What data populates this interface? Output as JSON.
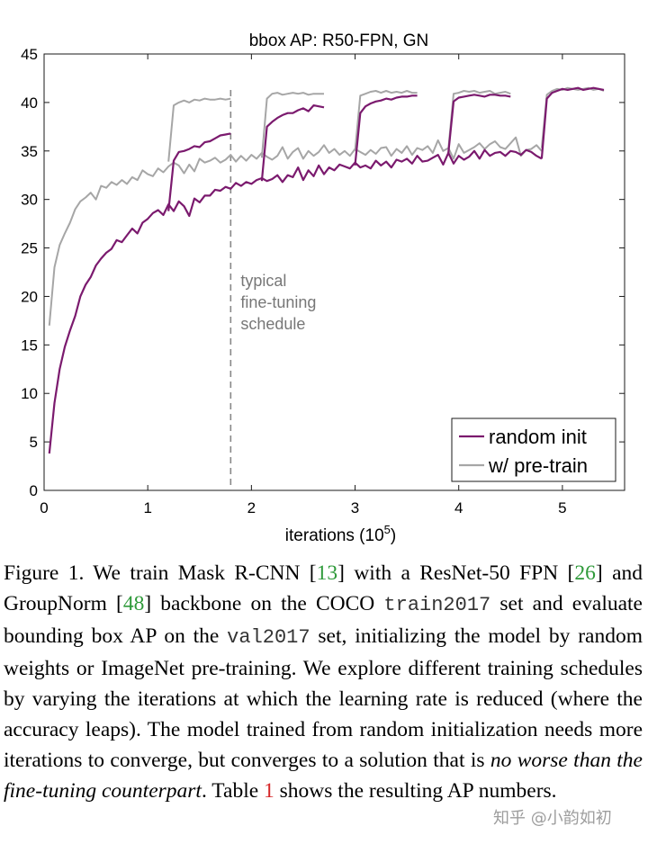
{
  "chart_data": {
    "type": "line",
    "title": "bbox AP: R50-FPN, GN",
    "xlabel": "iterations (10",
    "xlabel_sup": "5",
    "xlabel_close": ")",
    "ylabel": "",
    "xlim": [
      0,
      5.6
    ],
    "ylim": [
      0,
      45
    ],
    "xticks": [
      0,
      1,
      2,
      3,
      4,
      5
    ],
    "yticks": [
      0,
      5,
      10,
      15,
      20,
      25,
      30,
      35,
      40,
      45
    ],
    "grid": false,
    "legend_position": "bottom-right",
    "colors": {
      "random_init": "#7b1a6e",
      "pretrain": "#a6a6a6",
      "annotation": "#777777"
    },
    "annotation": {
      "x": 1.8,
      "lines": [
        "typical",
        "fine-tuning",
        "schedule"
      ]
    },
    "series": [
      {
        "name": "random init",
        "segments": [
          {
            "x": [
              0.05,
              0.1,
              0.15,
              0.2,
              0.25,
              0.3,
              0.35,
              0.4,
              0.45,
              0.5,
              0.55,
              0.6,
              0.65,
              0.7,
              0.75,
              0.8,
              0.85,
              0.9,
              0.95,
              1.0,
              1.05,
              1.1,
              1.15,
              1.2,
              1.25,
              1.3,
              1.35,
              1.4,
              1.45,
              1.5,
              1.55,
              1.6,
              1.65,
              1.7,
              1.75,
              1.8,
              1.85,
              1.9,
              1.95,
              2.0,
              2.05,
              2.1,
              2.15,
              2.2,
              2.25,
              2.3,
              2.35,
              2.4,
              2.45,
              2.5,
              2.55,
              2.6,
              2.65,
              2.7,
              2.75,
              2.8,
              2.85,
              2.9,
              2.95,
              3.0,
              3.05,
              3.1,
              3.15,
              3.2,
              3.25,
              3.3,
              3.35,
              3.4,
              3.45,
              3.5,
              3.55,
              3.6,
              3.65,
              3.7,
              3.75,
              3.8,
              3.85,
              3.9,
              3.95,
              4.0,
              4.05,
              4.1,
              4.15,
              4.2,
              4.25,
              4.3,
              4.35,
              4.4,
              4.45,
              4.5,
              4.55,
              4.6,
              4.65,
              4.7,
              4.75,
              4.8
            ],
            "y": [
              3.8,
              9.0,
              12.5,
              14.8,
              16.5,
              18.0,
              20.0,
              21.2,
              22.0,
              23.2,
              23.9,
              24.5,
              24.9,
              25.8,
              25.6,
              26.3,
              27.0,
              26.5,
              27.6,
              28.0,
              28.6,
              28.9,
              28.4,
              29.5,
              28.8,
              29.8,
              29.3,
              28.3,
              30.1,
              29.7,
              30.4,
              30.4,
              31.0,
              30.9,
              31.3,
              31.1,
              31.7,
              31.4,
              31.8,
              31.6,
              32.0,
              32.2,
              31.9,
              32.1,
              32.5,
              31.8,
              32.5,
              32.3,
              33.3,
              32.0,
              33.0,
              32.4,
              33.5,
              32.6,
              33.3,
              33.0,
              33.6,
              33.4,
              33.2,
              33.8,
              33.3,
              33.5,
              33.2,
              34.0,
              33.5,
              33.9,
              33.3,
              34.1,
              33.9,
              34.2,
              33.7,
              34.5,
              33.9,
              34.0,
              34.3,
              34.6,
              33.6,
              34.8,
              33.7,
              34.5,
              34.1,
              34.4,
              35.0,
              34.2,
              35.1,
              34.5,
              34.8,
              34.9,
              34.5,
              35.0,
              34.9,
              34.6,
              35.1,
              34.9,
              34.5,
              34.2
            ]
          },
          {
            "x": [
              1.2,
              1.25,
              1.3,
              1.35,
              1.4,
              1.45,
              1.5,
              1.55,
              1.6,
              1.65,
              1.7,
              1.75,
              1.8
            ],
            "y": [
              28.8,
              34.0,
              34.9,
              35.0,
              35.2,
              35.5,
              35.4,
              35.9,
              36.0,
              36.3,
              36.6,
              36.7,
              36.8
            ]
          },
          {
            "x": [
              2.1,
              2.15,
              2.2,
              2.25,
              2.3,
              2.35,
              2.4,
              2.45,
              2.5,
              2.55,
              2.6,
              2.65,
              2.7
            ],
            "y": [
              31.9,
              37.5,
              38.0,
              38.4,
              38.7,
              38.9,
              38.9,
              39.2,
              39.4,
              39.1,
              39.7,
              39.6,
              39.5
            ]
          },
          {
            "x": [
              3.0,
              3.05,
              3.1,
              3.15,
              3.2,
              3.25,
              3.3,
              3.35,
              3.4,
              3.45,
              3.5,
              3.55,
              3.6
            ],
            "y": [
              33.5,
              38.9,
              39.6,
              39.9,
              40.1,
              40.2,
              40.4,
              40.3,
              40.5,
              40.6,
              40.6,
              40.7,
              40.7
            ]
          },
          {
            "x": [
              3.9,
              3.95,
              4.0,
              4.05,
              4.1,
              4.15,
              4.2,
              4.25,
              4.3,
              4.35,
              4.4,
              4.45,
              4.5
            ],
            "y": [
              34.8,
              40.1,
              40.5,
              40.6,
              40.7,
              40.8,
              40.7,
              40.6,
              40.8,
              40.8,
              40.7,
              40.7,
              40.6
            ]
          },
          {
            "x": [
              4.8,
              4.85,
              4.9,
              4.95,
              5.0,
              5.05,
              5.1,
              5.15,
              5.2,
              5.25,
              5.3,
              5.35,
              5.4
            ],
            "y": [
              34.2,
              40.4,
              41.0,
              41.2,
              41.4,
              41.3,
              41.4,
              41.5,
              41.3,
              41.4,
              41.5,
              41.4,
              41.3
            ]
          }
        ]
      },
      {
        "name": "w/ pre-train",
        "segments": [
          {
            "x": [
              0.05,
              0.1,
              0.15,
              0.2,
              0.25,
              0.3,
              0.35,
              0.4,
              0.45,
              0.5,
              0.55,
              0.6,
              0.65,
              0.7,
              0.75,
              0.8,
              0.85,
              0.9,
              0.95,
              1.0,
              1.05,
              1.1,
              1.15,
              1.2,
              1.25,
              1.3,
              1.35,
              1.4,
              1.45,
              1.5,
              1.55,
              1.6,
              1.65,
              1.7,
              1.75,
              1.8,
              1.85,
              1.9,
              1.95,
              2.0,
              2.05,
              2.1,
              2.15,
              2.2,
              2.25,
              2.3,
              2.35,
              2.4,
              2.45,
              2.5,
              2.55,
              2.6,
              2.65,
              2.7,
              2.75,
              2.8,
              2.85,
              2.9,
              2.95,
              3.0,
              3.05,
              3.1,
              3.15,
              3.2,
              3.25,
              3.3,
              3.35,
              3.4,
              3.45,
              3.5,
              3.55,
              3.6,
              3.65,
              3.7,
              3.75,
              3.8,
              3.85,
              3.9,
              3.95,
              4.0,
              4.05,
              4.1,
              4.15,
              4.2,
              4.25,
              4.3,
              4.35,
              4.4,
              4.45,
              4.5,
              4.55,
              4.6,
              4.65,
              4.7,
              4.75,
              4.8
            ],
            "y": [
              17.0,
              23.0,
              25.3,
              26.5,
              27.6,
              29.0,
              29.8,
              30.2,
              30.7,
              30.0,
              31.4,
              31.2,
              31.8,
              31.5,
              32.0,
              31.6,
              32.3,
              32.0,
              33.0,
              32.6,
              32.4,
              33.2,
              32.8,
              33.4,
              33.8,
              33.5,
              32.7,
              33.6,
              32.9,
              34.2,
              33.8,
              34.0,
              34.3,
              33.8,
              34.1,
              34.6,
              33.9,
              34.5,
              34.0,
              34.6,
              34.2,
              34.8,
              34.4,
              34.1,
              34.5,
              35.4,
              34.2,
              34.9,
              35.3,
              34.2,
              35.0,
              34.5,
              34.9,
              35.6,
              34.8,
              35.2,
              34.6,
              35.0,
              34.5,
              35.2,
              34.9,
              34.6,
              35.1,
              34.7,
              35.3,
              35.4,
              34.5,
              35.2,
              34.8,
              35.5,
              34.6,
              35.3,
              35.1,
              35.5,
              34.8,
              36.1,
              35.0,
              35.3,
              34.2,
              35.7,
              34.8,
              35.1,
              35.4,
              35.8,
              35.2,
              35.7,
              36.0,
              35.4,
              35.2,
              35.8,
              36.4,
              34.5,
              35.1,
              35.2,
              35.6,
              35.0
            ]
          },
          {
            "x": [
              1.2,
              1.25,
              1.3,
              1.35,
              1.4,
              1.45,
              1.5,
              1.55,
              1.6,
              1.65,
              1.7,
              1.75,
              1.8
            ],
            "y": [
              33.9,
              39.7,
              40.0,
              40.2,
              40.0,
              40.3,
              40.2,
              40.4,
              40.3,
              40.3,
              40.4,
              40.3,
              40.4
            ]
          },
          {
            "x": [
              2.1,
              2.15,
              2.2,
              2.25,
              2.3,
              2.35,
              2.4,
              2.45,
              2.5,
              2.55,
              2.6,
              2.65,
              2.7
            ],
            "y": [
              34.3,
              40.4,
              40.9,
              41.0,
              40.8,
              40.9,
              41.0,
              40.9,
              41.0,
              40.8,
              40.9,
              40.9,
              40.9
            ]
          },
          {
            "x": [
              3.0,
              3.05,
              3.1,
              3.15,
              3.2,
              3.25,
              3.3,
              3.35,
              3.4,
              3.45,
              3.5,
              3.55,
              3.6
            ],
            "y": [
              35.0,
              40.7,
              40.9,
              41.1,
              41.2,
              41.0,
              41.2,
              41.0,
              41.1,
              41.0,
              41.2,
              41.0,
              41.0
            ]
          },
          {
            "x": [
              3.9,
              3.95,
              4.0,
              4.05,
              4.1,
              4.15,
              4.2,
              4.25,
              4.3,
              4.35,
              4.4,
              4.45,
              4.5
            ],
            "y": [
              35.2,
              40.9,
              41.0,
              41.2,
              41.1,
              41.2,
              41.0,
              41.1,
              41.2,
              40.9,
              41.0,
              41.1,
              40.9
            ]
          },
          {
            "x": [
              4.8,
              4.85,
              4.9,
              4.95,
              5.0,
              5.05,
              5.1,
              5.15,
              5.2,
              5.25,
              5.3,
              5.35,
              5.4
            ],
            "y": [
              35.3,
              40.8,
              41.2,
              41.4,
              41.3,
              41.5,
              41.4,
              41.3,
              41.4,
              41.5,
              41.3,
              41.4,
              41.2
            ]
          }
        ]
      }
    ]
  },
  "caption": {
    "p1": "Figure 1. We train Mask R-CNN [",
    "r1": "13",
    "p2": "] with a ResNet-50 FPN [",
    "r2": "26",
    "p3": "] and GroupNorm [",
    "r3": "48",
    "p4": "] backbone on the COCO ",
    "mono1": "train2017",
    "p5": " set and evaluate bounding box AP on the ",
    "mono2": "val2017",
    "p6": " set, initializing the model by random weights or ImageNet pre-training.  We explore different training schedules by varying the iterations at which the learning rate is reduced (where the accuracy leaps). The model trained from random initialization needs more iterations to converge, but converges to a solution that is ",
    "em1": "no worse than the fine-tuning counterpart",
    "p7": ". Table ",
    "r4": "1",
    "p8": " shows the resulting AP numbers."
  },
  "watermark": "知乎 @小韵如初"
}
